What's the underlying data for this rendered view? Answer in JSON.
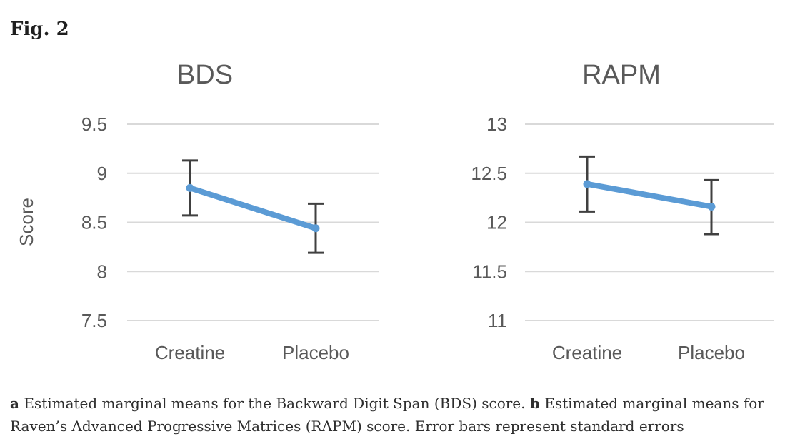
{
  "figure": {
    "label": "Fig. 2"
  },
  "colors": {
    "line": "#5B9BD5",
    "marker": "#5B9BD5",
    "error_bar": "#404040",
    "gridline": "#D9D9D9",
    "axis_text": "#595959",
    "title_text": "#595959",
    "caption_text": "#2e2e2e",
    "figure_label_text": "#1f1f1f",
    "background": "#ffffff"
  },
  "chart_data": [
    {
      "type": "line",
      "title": "BDS",
      "xlabel": "",
      "ylabel": "Score",
      "categories": [
        "Creatine",
        "Placebo"
      ],
      "series": [
        {
          "name": "Estimated marginal mean",
          "values": [
            8.85,
            8.44
          ],
          "error_low": [
            8.57,
            8.19
          ],
          "error_high": [
            9.13,
            8.69
          ]
        }
      ],
      "y_ticks": [
        9.5,
        9,
        8.5,
        8,
        7.5
      ],
      "ylim": [
        7.5,
        9.5
      ],
      "grid": true,
      "legend": false,
      "error_bars": "standard errors"
    },
    {
      "type": "line",
      "title": "RAPM",
      "xlabel": "",
      "ylabel": "",
      "categories": [
        "Creatine",
        "Placebo"
      ],
      "series": [
        {
          "name": "Estimated marginal mean",
          "values": [
            12.39,
            12.16
          ],
          "error_low": [
            12.11,
            11.88
          ],
          "error_high": [
            12.67,
            12.43
          ]
        }
      ],
      "y_ticks": [
        13,
        12.5,
        12,
        11.5,
        11
      ],
      "ylim": [
        11,
        13
      ],
      "grid": true,
      "legend": false,
      "error_bars": "standard errors"
    }
  ],
  "caption": {
    "parts": [
      {
        "text": "a",
        "bold": true
      },
      {
        "text": " Estimated marginal means for the Backward Digit Span (BDS) score. ",
        "bold": false
      },
      {
        "text": "b",
        "bold": true
      },
      {
        "text": " Estimated marginal means for Raven’s Advanced Progressive Matrices (RAPM) score. Error bars represent standard errors",
        "bold": false
      }
    ]
  }
}
